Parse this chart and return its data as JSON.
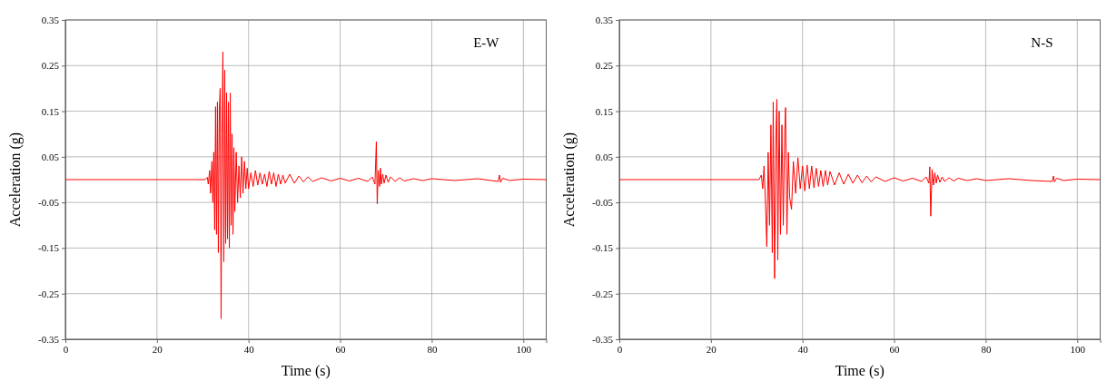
{
  "chart_data": [
    {
      "type": "line",
      "xlabel": "Time (s)",
      "ylabel": "Acceleration (g)",
      "annotations": [
        "E-W"
      ],
      "xlim": [
        0,
        105
      ],
      "xticks": [
        0,
        20,
        40,
        60,
        80,
        100
      ],
      "ylim": [
        -0.35,
        0.35
      ],
      "yticks": [
        -0.35,
        -0.25,
        -0.15,
        -0.05,
        0.05,
        0.15,
        0.25,
        0.35
      ],
      "grid": true,
      "series": [
        {
          "color": "#ff0000",
          "x": [
            0,
            30.5,
            31,
            31.2,
            31.5,
            31.7,
            32,
            32.2,
            32.4,
            32.6,
            32.8,
            33,
            33.2,
            33.4,
            33.6,
            33.8,
            34,
            34.2,
            34.4,
            34.6,
            34.8,
            35,
            35.2,
            35.4,
            35.6,
            35.8,
            36,
            36.2,
            36.4,
            36.6,
            36.8,
            37,
            37.3,
            37.6,
            37.9,
            38.2,
            38.5,
            38.8,
            39.1,
            39.4,
            39.7,
            40,
            40.5,
            41,
            41.5,
            42,
            42.5,
            43,
            43.5,
            44,
            44.5,
            45,
            45.5,
            46,
            46.5,
            47,
            47.5,
            48,
            49,
            50,
            51,
            52,
            53,
            54,
            56,
            58,
            60,
            62,
            64,
            66,
            67,
            67.6,
            67.9,
            68.1,
            68.3,
            68.6,
            68.8,
            69,
            69.3,
            69.6,
            70,
            70.5,
            71,
            72,
            73,
            74,
            76,
            78,
            80,
            85,
            90,
            93,
            94.5,
            94.8,
            95,
            95.5,
            97,
            100,
            105
          ],
          "values": [
            0,
            0,
            0.005,
            -0.01,
            0.02,
            -0.03,
            0.04,
            -0.05,
            0.06,
            -0.11,
            0.16,
            -0.12,
            0.17,
            -0.16,
            0.15,
            0.2,
            -0.305,
            0.1,
            0.28,
            -0.18,
            0.24,
            -0.14,
            0.19,
            -0.13,
            0.17,
            -0.15,
            0.19,
            -0.1,
            0.1,
            -0.12,
            0.07,
            -0.07,
            0.06,
            -0.05,
            0.03,
            -0.04,
            0.05,
            -0.03,
            0.04,
            -0.02,
            0.025,
            -0.02,
            0.015,
            -0.015,
            0.02,
            -0.012,
            0.015,
            -0.01,
            0.012,
            -0.015,
            0.018,
            -0.01,
            0.015,
            -0.015,
            0.012,
            -0.01,
            0.01,
            -0.008,
            0.012,
            -0.008,
            0.008,
            -0.005,
            0.006,
            -0.004,
            0.004,
            -0.003,
            0.003,
            -0.003,
            0.003,
            -0.004,
            0.006,
            -0.01,
            0.083,
            -0.053,
            0.02,
            -0.015,
            0.025,
            -0.01,
            0.012,
            -0.008,
            0.01,
            -0.006,
            0.006,
            -0.004,
            0.004,
            -0.003,
            0.002,
            -0.002,
            0.002,
            -0.002,
            0.002,
            -0.002,
            -0.004,
            0.01,
            -0.006,
            0.003,
            -0.002,
            0.001,
            0
          ]
        }
      ]
    },
    {
      "type": "line",
      "xlabel": "Time (s)",
      "ylabel": "Acceleration (g)",
      "annotations": [
        "N-S"
      ],
      "xlim": [
        0,
        105
      ],
      "xticks": [
        0,
        20,
        40,
        60,
        80,
        100
      ],
      "ylim": [
        -0.35,
        0.35
      ],
      "yticks": [
        -0.35,
        -0.25,
        -0.15,
        -0.05,
        0.05,
        0.15,
        0.25,
        0.35
      ],
      "grid": true,
      "series": [
        {
          "color": "#ff0000",
          "x": [
            0,
            30.5,
            31,
            31.3,
            31.6,
            31.9,
            32.2,
            32.5,
            32.8,
            33.1,
            33.4,
            33.6,
            33.9,
            34.2,
            34.4,
            34.6,
            34.9,
            35.2,
            35.5,
            35.8,
            36.1,
            36.3,
            36.6,
            36.9,
            37.2,
            37.6,
            38,
            38.5,
            39,
            39.5,
            40,
            40.5,
            41,
            41.5,
            42,
            42.5,
            43,
            43.5,
            44,
            44.5,
            45,
            45.5,
            46,
            47,
            48,
            49,
            50,
            51,
            52,
            53,
            54,
            55,
            56,
            58,
            60,
            62,
            64,
            66,
            67,
            67.6,
            67.8,
            68,
            68.3,
            68.6,
            68.9,
            69.2,
            69.5,
            70,
            70.5,
            71,
            72,
            73,
            74,
            76,
            78,
            80,
            85,
            90,
            94.5,
            94.8,
            95,
            95.5,
            97,
            100,
            105
          ],
          "values": [
            0,
            0,
            0.01,
            -0.02,
            0.03,
            -0.05,
            -0.147,
            0.06,
            -0.1,
            0.12,
            -0.16,
            0.17,
            -0.217,
            0.1,
            0.176,
            -0.176,
            0.15,
            -0.12,
            0.12,
            -0.1,
            0.1,
            0.158,
            -0.12,
            0.06,
            -0.04,
            -0.065,
            0.04,
            -0.03,
            0.048,
            -0.02,
            0.03,
            -0.025,
            0.032,
            -0.02,
            0.03,
            -0.018,
            0.025,
            -0.015,
            0.02,
            -0.015,
            0.02,
            -0.012,
            0.018,
            -0.012,
            0.015,
            -0.01,
            0.012,
            -0.008,
            0.01,
            -0.007,
            0.008,
            -0.005,
            0.006,
            -0.004,
            0.004,
            -0.003,
            0.003,
            -0.004,
            0.006,
            -0.008,
            0.028,
            -0.08,
            0.022,
            -0.012,
            0.015,
            -0.008,
            0.01,
            -0.006,
            0.006,
            -0.004,
            0.004,
            -0.003,
            0.003,
            -0.002,
            0.002,
            -0.002,
            0.002,
            -0.002,
            -0.004,
            0.008,
            -0.005,
            0.003,
            -0.002,
            0.001,
            0
          ]
        }
      ]
    }
  ]
}
